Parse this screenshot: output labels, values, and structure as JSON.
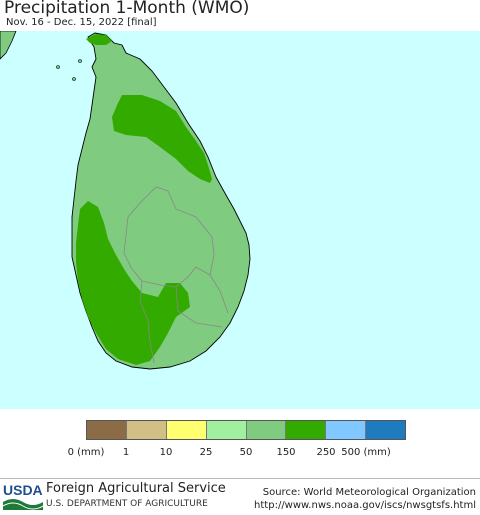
{
  "header": {
    "title": "Precipitation 1-Month (WMO)",
    "subtitle": "Nov. 16 - Dec. 15, 2022 [final]"
  },
  "map": {
    "region": "Sri Lanka",
    "ocean_color": "#ccffff",
    "land_outside_color": "#7fcc80",
    "categories_present": [
      "50",
      "150"
    ]
  },
  "legend": {
    "swatches": [
      {
        "label": "0 (mm)",
        "color": "#8b6c47"
      },
      {
        "label": "1",
        "color": "#d2bf85"
      },
      {
        "label": "10",
        "color": "#ffff70"
      },
      {
        "label": "25",
        "color": "#a0f0a0"
      },
      {
        "label": "50",
        "color": "#7fcc80"
      },
      {
        "label": "150",
        "color": "#33aa00"
      },
      {
        "label": "250",
        "color": "#80c8ff"
      },
      {
        "label": "500 (mm)",
        "color": "#1e7bbf"
      }
    ]
  },
  "footer": {
    "agency_abbr": "USDA",
    "agency_name": "Foreign Agricultural Service",
    "department": "U.S. DEPARTMENT OF AGRICULTURE",
    "source_line1": "Source: World Meteorological Organization",
    "source_line2": "http://www.nws.noaa.gov/iscs/nwsgtsfs.html"
  }
}
